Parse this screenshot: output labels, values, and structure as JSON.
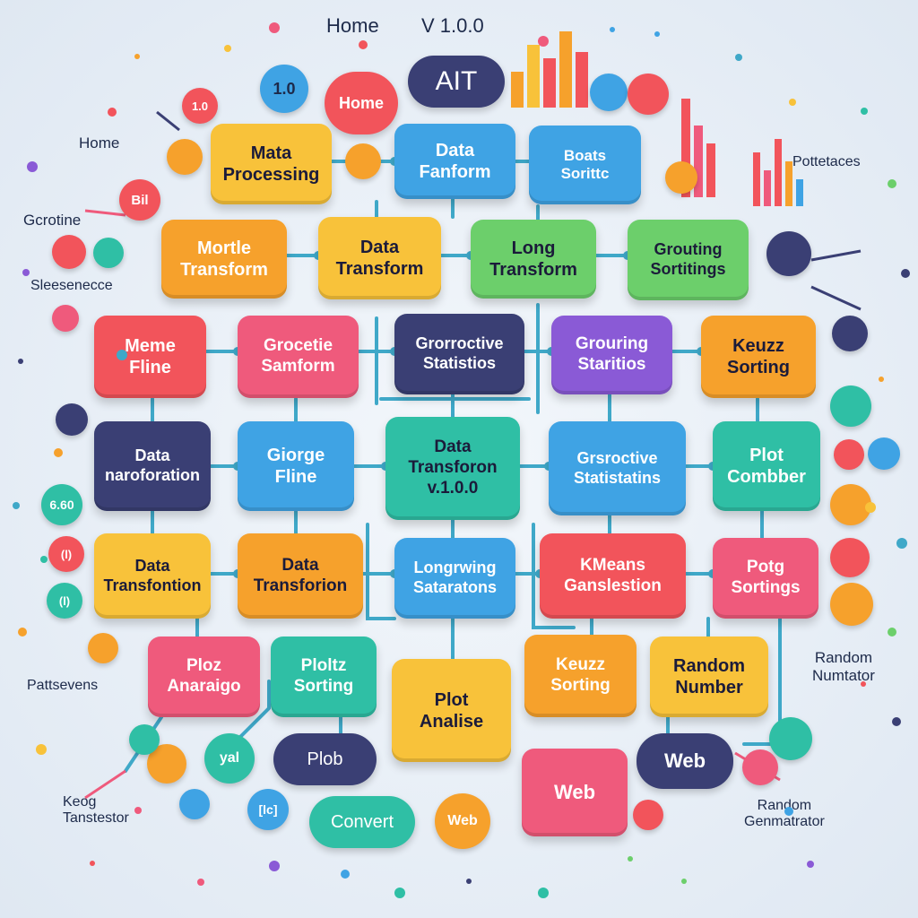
{
  "header": {
    "home_label": "Home",
    "version": "V 1.0.0"
  },
  "brand": {
    "title": "AIT"
  },
  "top_pill": {
    "label": "Home"
  },
  "top_circle": {
    "label": "1.0"
  },
  "side_labels": {
    "home_left": "Home",
    "gcrotine": "Gcrotine",
    "sleesenecce": "Sleesenecce",
    "pottetaces": "Pottetaces",
    "pattsevens": "Pattsevens",
    "random_numtator": "Random\nNumtator",
    "keog_tanstestor": "Keog\nTanstestor",
    "random_generator": "Random\nGenmatrator"
  },
  "nodes": {
    "r0": [
      "Mata\nProcessing",
      "Data\nFanform",
      "Boats\nSorittc"
    ],
    "r1": [
      "Mortle\nTransform",
      "Data\nTransform",
      "Long\nTransform",
      "Grouting\nSortitings"
    ],
    "r2": [
      "Meme\nFline",
      "Grocetie\nSamform",
      "Grorroctive\nStatistios",
      "Grouring\nStaritios",
      "Keuzz\nSorting"
    ],
    "r3": [
      "Data\nnaroforation",
      "Giorge\nFline",
      "Data\nTransforon\nv.1.0.0",
      "Grsroctive\nStatistatins",
      "Plot\nCombber"
    ],
    "r4": [
      "Data\nTransfontion",
      "Data\nTransforion",
      "Longrwing\nSataratons",
      "KMeans\nGanslestion",
      "Potg\nSortings"
    ],
    "r5": [
      "Ploz\nAnaraigo",
      "Ploltz\nSorting",
      "Plot\nAnalise",
      "Keuzz\nSorting",
      "Random\nNumber"
    ],
    "r6": [
      "Plob",
      "Web",
      "Web"
    ],
    "r7": [
      "Convert",
      "Web"
    ]
  },
  "small_circles": [
    "Bil",
    "1.0",
    "6.60",
    "(l)",
    "(l)",
    "yal",
    "[lc]"
  ],
  "colors": {
    "orange": "#f6a12c",
    "yellow": "#f8c23a",
    "red": "#f2545b",
    "pink": "#ef5a7c",
    "blue": "#3fa3e4",
    "teal": "#2fbfa5",
    "green": "#6ccf6b",
    "purple": "#8a5ad6",
    "navy": "#3a3f74",
    "line": "#3fa8c8"
  }
}
